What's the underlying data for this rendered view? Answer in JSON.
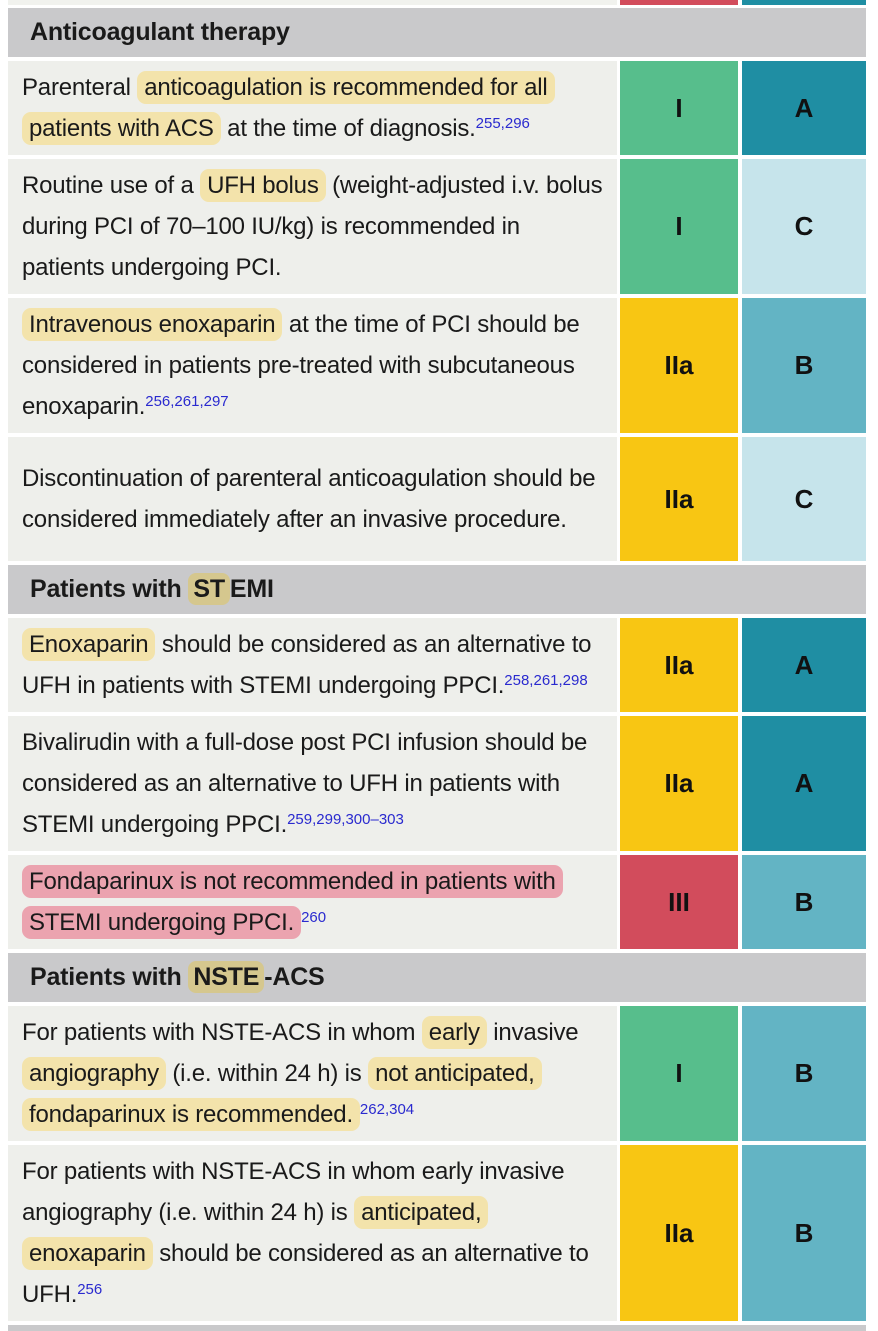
{
  "palette": {
    "row_bg": "#eeefeb",
    "section_bg": "#c9c9cb",
    "class_green": "#57be8c",
    "class_yellow": "#f8c613",
    "class_red": "#d24c5c",
    "level_teal": "#1f8ea3",
    "level_midteal": "#63b4c4",
    "level_lightblue": "#c6e4eb",
    "hl_yellow": "#f3e3ab",
    "hl_pink": "#eba3af",
    "hl_tan": "#d5c78e",
    "ref_blue": "#2a2acf"
  },
  "top_partial_row": {
    "class_color": "class_red",
    "level_color": "level_teal"
  },
  "sections": [
    {
      "header": [
        {
          "text": "Anticoagulant therapy"
        }
      ],
      "rows": [
        {
          "lines": 2,
          "segments": [
            {
              "text": "Parenteral "
            },
            {
              "text": "anticoagulation is recommended for all patients with ACS",
              "hl": "yellow"
            },
            {
              "text": " at the time of diagnosis."
            },
            {
              "text": "255,296",
              "sup": true
            }
          ],
          "class": {
            "label": "I",
            "color": "class_green"
          },
          "level": {
            "label": "A",
            "color": "level_teal"
          }
        },
        {
          "lines": 3,
          "segments": [
            {
              "text": "Routine use of a "
            },
            {
              "text": "UFH bolus",
              "hl": "yellow"
            },
            {
              "text": " (weight-adjusted i.v. bolus during PCI of 70–100 IU/kg) is recommended in patients undergoing PCI."
            }
          ],
          "class": {
            "label": "I",
            "color": "class_green"
          },
          "level": {
            "label": "C",
            "color": "level_lightblue"
          }
        },
        {
          "lines": 3,
          "segments": [
            {
              "text": "Intravenous enoxaparin",
              "hl": "yellow"
            },
            {
              "text": " at the time of PCI should be considered in patients pre-treated with subcutaneous enoxaparin."
            },
            {
              "text": "256,261,297",
              "sup": true
            }
          ],
          "class": {
            "label": "IIa",
            "color": "class_yellow"
          },
          "level": {
            "label": "B",
            "color": "level_midteal"
          }
        },
        {
          "lines": 3,
          "segments": [
            {
              "text": "Discontinuation of parenteral anticoagulation should be considered immediately after an invasive procedure."
            }
          ],
          "class": {
            "label": "IIa",
            "color": "class_yellow"
          },
          "level": {
            "label": "C",
            "color": "level_lightblue"
          }
        }
      ]
    },
    {
      "header": [
        {
          "text": "Patients with "
        },
        {
          "text": "ST",
          "hl": "tan"
        },
        {
          "text": "EMI"
        }
      ],
      "rows": [
        {
          "lines": 2,
          "segments": [
            {
              "text": "Enoxaparin",
              "hl": "yellow"
            },
            {
              "text": " should be considered as an alternative to UFH in patients with STEMI undergoing PPCI."
            },
            {
              "text": "258,261,298",
              "sup": true
            }
          ],
          "class": {
            "label": "IIa",
            "color": "class_yellow"
          },
          "level": {
            "label": "A",
            "color": "level_teal"
          }
        },
        {
          "lines": 3,
          "segments": [
            {
              "text": "Bivalirudin with a full-dose post PCI infusion should be considered as an alternative to UFH in patients with STEMI undergoing PPCI."
            },
            {
              "text": "259,299,300–303",
              "sup": true
            }
          ],
          "class": {
            "label": "IIa",
            "color": "class_yellow"
          },
          "level": {
            "label": "A",
            "color": "level_teal"
          }
        },
        {
          "lines": 2,
          "segments": [
            {
              "text": "Fondaparinux is not recommended in patients with STEMI undergoing PPCI.",
              "hl": "pink"
            },
            {
              "text": "260",
              "sup": true
            }
          ],
          "class": {
            "label": "III",
            "color": "class_red"
          },
          "level": {
            "label": "B",
            "color": "level_midteal"
          }
        }
      ]
    },
    {
      "header": [
        {
          "text": "Patients with "
        },
        {
          "text": "NSTE",
          "hl": "tan"
        },
        {
          "text": "-ACS"
        }
      ],
      "rows": [
        {
          "lines": 3,
          "segments": [
            {
              "text": "For patients with NSTE-ACS in whom "
            },
            {
              "text": "early",
              "hl": "yellow"
            },
            {
              "text": " invasive "
            },
            {
              "text": "angiography",
              "hl": "yellow"
            },
            {
              "text": " (i.e. within 24 h) is "
            },
            {
              "text": "not anticipated,",
              "hl": "yellow"
            },
            {
              "text": " "
            },
            {
              "text": "fondaparinux is recommended.",
              "hl": "yellow"
            },
            {
              "text": "262,304",
              "sup": true
            }
          ],
          "class": {
            "label": "I",
            "color": "class_green"
          },
          "level": {
            "label": "B",
            "color": "level_midteal"
          }
        },
        {
          "lines": 3,
          "segments": [
            {
              "text": "For patients with NSTE-ACS in whom early invasive angiography (i.e. within 24 h) is "
            },
            {
              "text": "anticipated,",
              "hl": "yellow"
            },
            {
              "text": " "
            },
            {
              "text": "enoxaparin",
              "hl": "yellow"
            },
            {
              "text": " should be considered as an alternative to UFH."
            },
            {
              "text": "256",
              "sup": true
            }
          ],
          "class": {
            "label": "IIa",
            "color": "class_yellow"
          },
          "level": {
            "label": "B",
            "color": "level_midteal"
          }
        }
      ]
    }
  ],
  "bottom_strip": true
}
